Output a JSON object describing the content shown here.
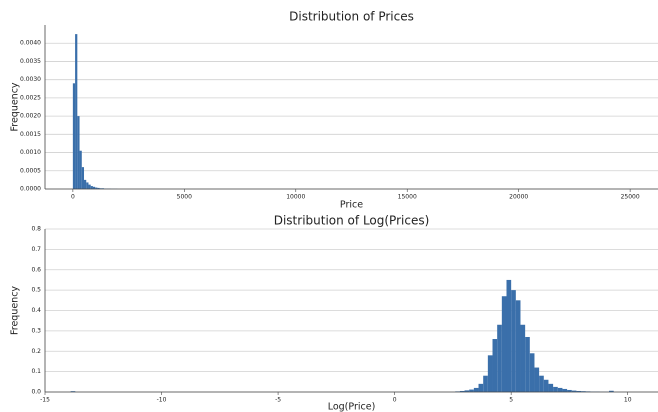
{
  "chart_data": [
    {
      "type": "histogram",
      "title": "Distribution of Prices",
      "xlabel": "Price",
      "ylabel": "Frequency",
      "color": "#3a6faa",
      "grid": true,
      "bins": [
        0,
        100,
        200,
        300,
        400,
        500,
        600,
        700,
        800,
        900,
        1000,
        1100,
        1200,
        1300,
        1400,
        1500,
        1600,
        1700,
        1800,
        1900,
        2000
      ],
      "values": [
        0.0029,
        0.00425,
        0.002,
        0.00105,
        0.0006,
        0.00025,
        0.00018,
        0.00012,
        8e-05,
        6e-05,
        4e-05,
        3e-05,
        2e-05,
        2e-05,
        1e-05,
        1e-05,
        1e-05,
        5e-06,
        5e-06,
        5e-06
      ],
      "xlim": [
        -1250,
        26250
      ],
      "xticks": [
        0,
        5000,
        10000,
        15000,
        20000,
        25000
      ],
      "ylim": [
        0,
        0.0045
      ],
      "yticks": [
        {
          "value": 0,
          "label": "0.0000"
        },
        0.0005,
        {
          "value": 0.001,
          "label": "0.0010"
        },
        0.0015,
        {
          "value": 0.002,
          "label": "0.0020"
        },
        0.0025,
        {
          "value": 0.003,
          "label": "0.0030"
        },
        0.0035,
        {
          "value": 0.004,
          "label": "0.0040"
        }
      ]
    },
    {
      "type": "histogram",
      "title": "Distribution of Log(Prices)",
      "xlabel": "Log(Price)",
      "ylabel": "Frequency",
      "color": "#3a6faa",
      "grid": true,
      "bins": [
        -13.9,
        -13.7,
        2.6,
        2.8,
        3.0,
        3.2,
        3.4,
        3.6,
        3.8,
        4.0,
        4.2,
        4.4,
        4.6,
        4.8,
        5.0,
        5.2,
        5.4,
        5.6,
        5.8,
        6.0,
        6.2,
        6.4,
        6.6,
        6.8,
        7.0,
        7.2,
        7.4,
        7.6,
        7.8,
        8.0,
        8.2,
        8.4,
        8.6,
        8.8,
        9.0,
        9.2,
        9.4
      ],
      "values": [
        0.004,
        0,
        0.003,
        0.005,
        0.008,
        0.012,
        0.02,
        0.04,
        0.08,
        0.18,
        0.26,
        0.33,
        0.47,
        0.55,
        0.5,
        0.45,
        0.33,
        0.27,
        0.19,
        0.12,
        0.08,
        0.06,
        0.04,
        0.025,
        0.02,
        0.015,
        0.01,
        0.007,
        0.005,
        0.004,
        0.003,
        0.002,
        0.002,
        0.001,
        0.001,
        0.006
      ],
      "xlim": [
        -15,
        11.3
      ],
      "xticks": [
        -15,
        -10,
        -5,
        0,
        5,
        10
      ],
      "ylim": [
        0,
        0.8
      ],
      "yticks": [
        {
          "value": 0,
          "label": "0.0"
        },
        0.1,
        0.2,
        0.3,
        0.4,
        0.5,
        0.6,
        0.7,
        0.8
      ]
    }
  ]
}
